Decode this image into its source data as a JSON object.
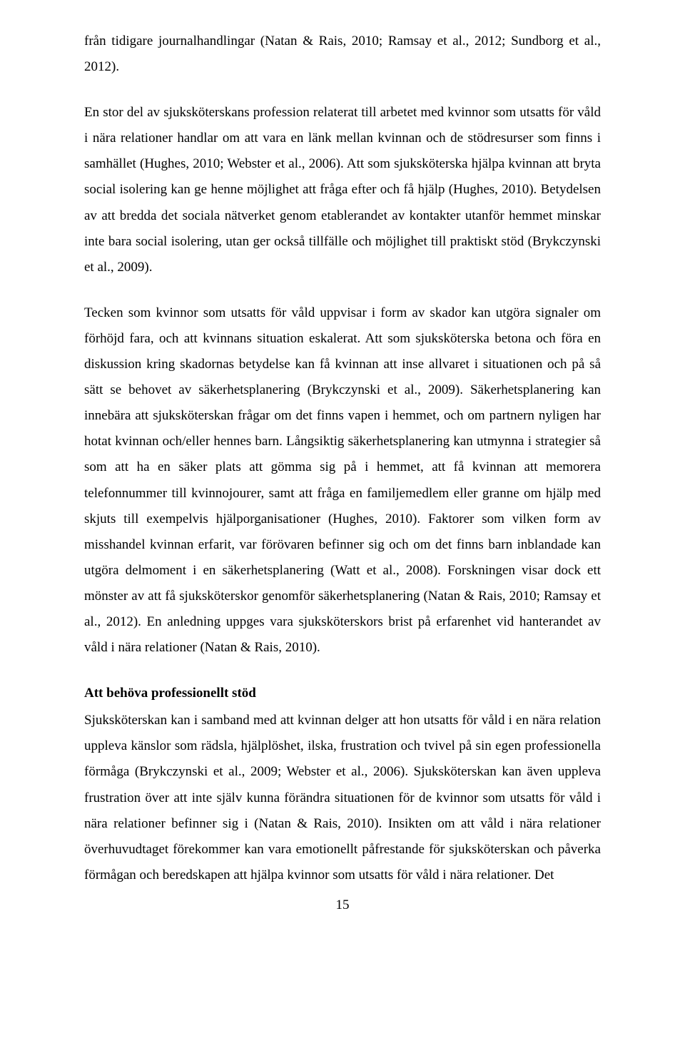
{
  "paragraphs": {
    "p1": "från tidigare journalhandlingar (Natan & Rais, 2010; Ramsay et al., 2012; Sundborg et al., 2012).",
    "p2": "En stor del av sjuksköterskans profession relaterat till arbetet med kvinnor som utsatts för våld i nära relationer handlar om att vara en länk mellan kvinnan och de stödresurser som finns i samhället (Hughes, 2010; Webster et al., 2006). Att som sjuksköterska hjälpa kvinnan att bryta social isolering kan ge henne möjlighet att fråga efter och få hjälp (Hughes, 2010). Betydelsen av att bredda det sociala nätverket genom etablerandet av kontakter utanför hemmet minskar inte bara social isolering, utan ger också tillfälle och möjlighet till praktiskt stöd (Brykczynski et al., 2009).",
    "p3": "Tecken som kvinnor som utsatts för våld uppvisar i form av skador kan utgöra signaler om förhöjd fara, och att kvinnans situation eskalerat. Att som sjuksköterska betona och föra en diskussion kring skadornas betydelse kan få kvinnan att inse allvaret i situationen och på så sätt se behovet av säkerhetsplanering (Brykczynski et al., 2009). Säkerhetsplanering kan innebära att sjuksköterskan frågar om det finns vapen i hemmet, och om partnern nyligen har hotat kvinnan och/eller hennes barn. Långsiktig säkerhetsplanering kan utmynna i strategier så som att ha en säker plats att gömma sig på i hemmet, att få kvinnan att memorera telefonnummer till kvinnojourer, samt att fråga en familjemedlem eller granne om hjälp med skjuts till exempelvis hjälporganisationer (Hughes, 2010). Faktorer som vilken form av misshandel kvinnan erfarit, var förövaren befinner sig och om det finns barn inblandade kan utgöra delmoment i en säkerhetsplanering (Watt et al., 2008). Forskningen visar dock ett mönster av att få sjuksköterskor genomför säkerhetsplanering (Natan & Rais, 2010; Ramsay et al., 2012). En anledning uppges vara sjuksköterskors brist på erfarenhet vid hanterandet av våld i nära relationer (Natan & Rais, 2010).",
    "heading": "Att behöva professionellt stöd",
    "p4": "Sjuksköterskan kan i samband med att kvinnan delger att hon utsatts för våld i en nära relation uppleva känslor som rädsla, hjälplöshet, ilska, frustration och tvivel på sin egen professionella förmåga (Brykczynski et al., 2009; Webster et al., 2006). Sjuksköterskan kan även uppleva frustration över att inte själv kunna förändra situationen för de kvinnor som utsatts för våld i nära relationer befinner sig i (Natan & Rais, 2010). Insikten om att våld i nära relationer överhuvudtaget förekommer kan vara emotionellt påfrestande för sjuksköterskan och påverka förmågan och beredskapen att hjälpa kvinnor som utsatts för våld i nära relationer. Det"
  },
  "page_number": "15"
}
